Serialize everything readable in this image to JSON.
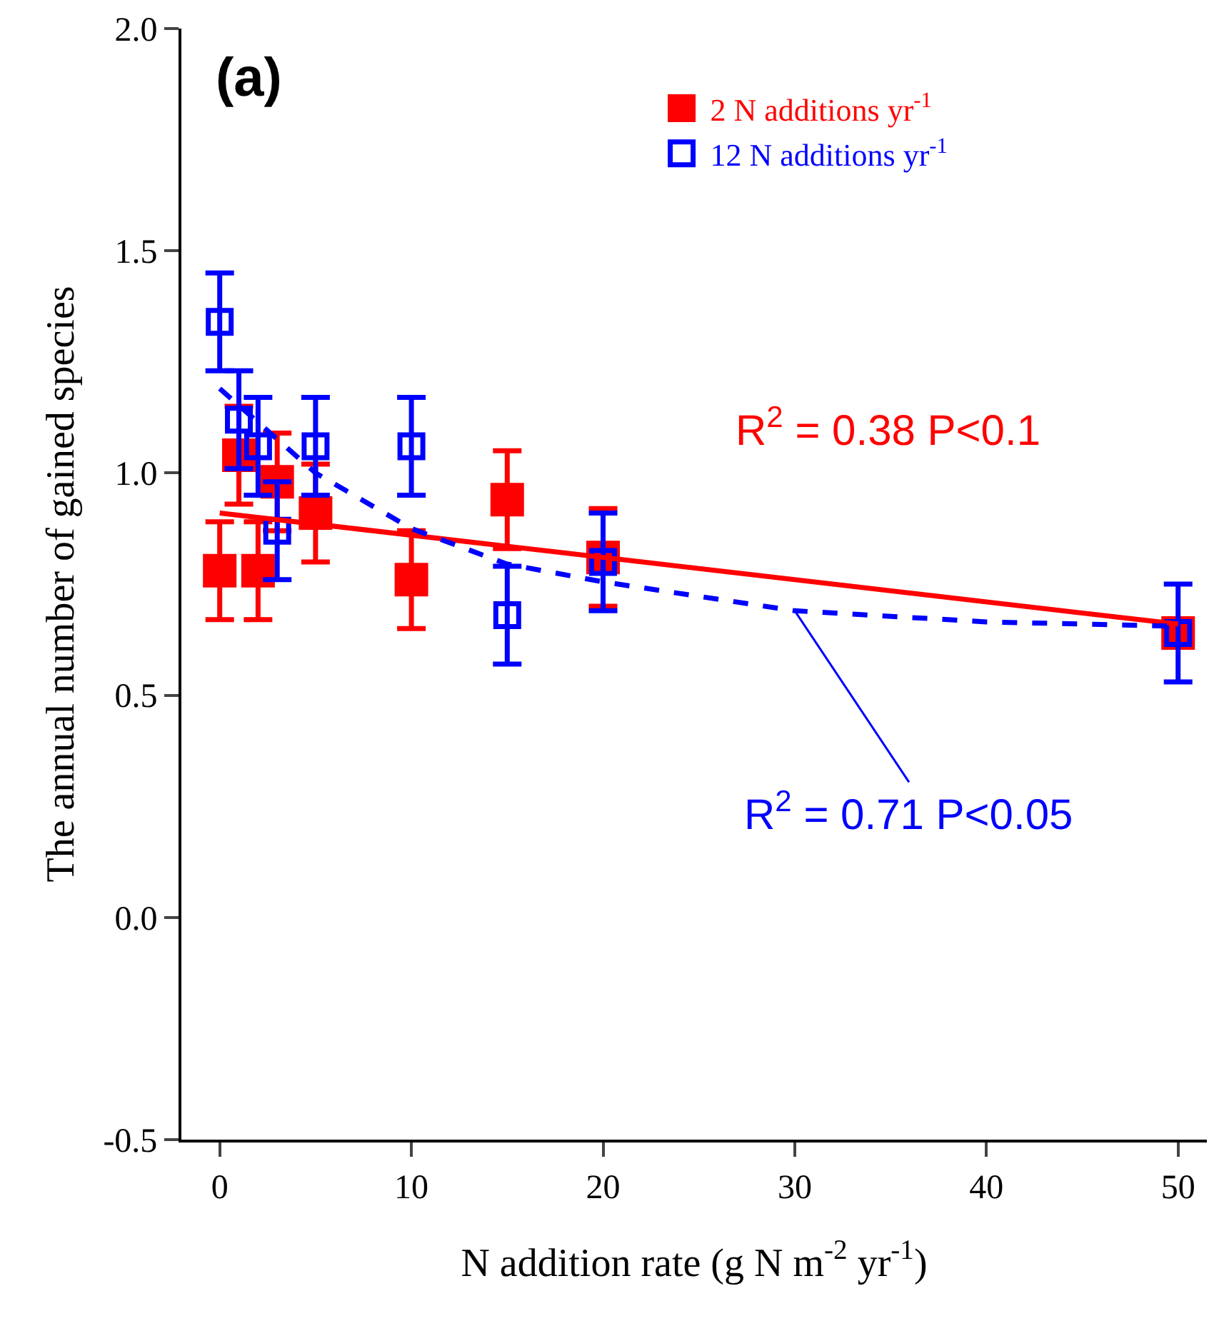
{
  "chart_data": {
    "type": "scatter",
    "xlabel": "N addition rate (g N m$^{-2}$ yr$^{-1}$)",
    "ylabel": "The annual number of gained species",
    "xlim": [
      -2,
      51.5
    ],
    "xticks": [
      0,
      10,
      20,
      30,
      40,
      50
    ],
    "ylim": [
      -0.5,
      2.0
    ],
    "yticks": [
      {
        "value": -0.5,
        "label": "-0.5"
      },
      {
        "value": 0,
        "label": "0.0"
      },
      {
        "value": 0.5,
        "label": "0.5"
      },
      {
        "value": 1,
        "label": "1.0"
      },
      {
        "value": 1.5,
        "label": "1.5"
      },
      {
        "value": 2,
        "label": "2.0"
      }
    ],
    "grid": false,
    "legend": "top right",
    "annotations": [
      "(a)",
      "R$^{2}$ = 0.38 P<0.1",
      {
        "text": "R$^{2}$ = 0.71 P<0.05",
        "x": 30,
        "y": 0.69
      }
    ],
    "series": [
      {
        "name": "2 N additions yr$^{-1}$",
        "type": "scatter",
        "marker": "square",
        "color": "#ff0000",
        "x": [
          0,
          1,
          2,
          3,
          5,
          10,
          15,
          20,
          50
        ],
        "values": [
          0.78,
          1.04,
          0.78,
          0.98,
          0.91,
          0.76,
          0.94,
          0.81,
          0.64
        ],
        "errors": [
          0.11,
          0.11,
          0.11,
          0.11,
          0.11,
          0.11,
          0.11,
          0.11,
          null
        ]
      },
      {
        "name": "12 N additions yr$^{-1}$",
        "type": "scatter",
        "marker": "square",
        "color": "#0000ff",
        "x": [
          0,
          1,
          2,
          3,
          5,
          10,
          15,
          20,
          50
        ],
        "values": [
          1.34,
          1.12,
          1.06,
          0.87,
          1.06,
          1.06,
          0.68,
          0.8,
          0.64
        ],
        "errors": [
          0.11,
          0.11,
          0.11,
          0.11,
          0.11,
          0.11,
          0.11,
          0.11,
          0.11
        ]
      },
      {
        "type": "line",
        "marker": "none",
        "line_style": "solid",
        "color": "#ff0000",
        "x": [
          0,
          50
        ],
        "values": [
          0.91,
          0.66
        ]
      },
      {
        "type": "line",
        "marker": "none",
        "line_style": "dashed",
        "color": "#0000ff",
        "x": [
          0,
          5,
          10,
          15,
          20,
          30,
          40,
          50
        ],
        "values": [
          1.19,
          1.0,
          0.875,
          0.795,
          0.755,
          0.69,
          0.665,
          0.655
        ]
      }
    ]
  }
}
